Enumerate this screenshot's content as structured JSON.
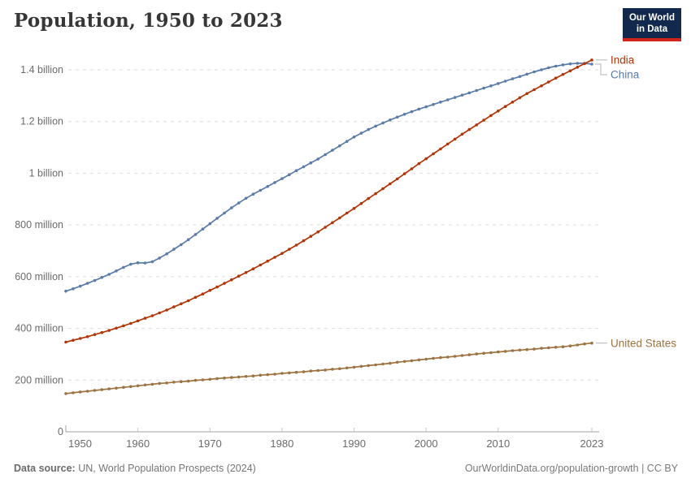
{
  "header": {
    "title": "Population, 1950 to 2023"
  },
  "logo": {
    "line1": "Our World",
    "line2": "in Data",
    "bg_color": "#12294d",
    "accent_color": "#d0241c"
  },
  "footer": {
    "source_label": "Data source:",
    "source_text": " UN, World Population Prospects (2024)",
    "credit_text": "OurWorldinData.org/population-growth | CC BY"
  },
  "chart_data": {
    "type": "line",
    "title": "Population, 1950 to 2023",
    "unit": "people (millions)",
    "grid": true,
    "legend_position": "end-of-line-labels-right",
    "xlim": [
      1950,
      2023
    ],
    "ylim": [
      0,
      1400
    ],
    "x_ticks": [
      {
        "value": 1950,
        "label": "1950"
      },
      {
        "value": 1960,
        "label": "1960"
      },
      {
        "value": 1970,
        "label": "1970"
      },
      {
        "value": 1980,
        "label": "1980"
      },
      {
        "value": 1990,
        "label": "1990"
      },
      {
        "value": 2000,
        "label": "2000"
      },
      {
        "value": 2010,
        "label": "2010"
      },
      {
        "value": 2023,
        "label": "2023"
      }
    ],
    "y_ticks": [
      {
        "value": 0,
        "label": "0"
      },
      {
        "value": 200,
        "label": "200 million"
      },
      {
        "value": 400,
        "label": "400 million"
      },
      {
        "value": 600,
        "label": "600 million"
      },
      {
        "value": 800,
        "label": "800 million"
      },
      {
        "value": 1000,
        "label": "1 billion"
      },
      {
        "value": 1200,
        "label": "1.2 billion"
      },
      {
        "value": 1400,
        "label": "1.4 billion"
      }
    ],
    "x": [
      1950,
      1951,
      1952,
      1953,
      1954,
      1955,
      1956,
      1957,
      1958,
      1959,
      1960,
      1961,
      1962,
      1963,
      1964,
      1965,
      1966,
      1967,
      1968,
      1969,
      1970,
      1971,
      1972,
      1973,
      1974,
      1975,
      1976,
      1977,
      1978,
      1979,
      1980,
      1981,
      1982,
      1983,
      1984,
      1985,
      1986,
      1987,
      1988,
      1989,
      1990,
      1991,
      1992,
      1993,
      1994,
      1995,
      1996,
      1997,
      1998,
      1999,
      2000,
      2001,
      2002,
      2003,
      2004,
      2005,
      2006,
      2007,
      2008,
      2009,
      2010,
      2011,
      2012,
      2013,
      2014,
      2015,
      2016,
      2017,
      2018,
      2019,
      2020,
      2021,
      2022,
      2023
    ],
    "series": [
      {
        "name": "India",
        "color": "#b13507",
        "values": [
          347,
          354,
          361,
          368,
          376,
          384,
          392,
          401,
          410,
          419,
          429,
          439,
          449,
          460,
          471,
          483,
          495,
          507,
          520,
          533,
          547,
          560,
          574,
          588,
          602,
          616,
          630,
          645,
          660,
          675,
          690,
          706,
          722,
          739,
          756,
          773,
          791,
          809,
          827,
          846,
          864,
          883,
          902,
          921,
          940,
          959,
          978,
          998,
          1017,
          1037,
          1056,
          1075,
          1094,
          1113,
          1132,
          1151,
          1169,
          1187,
          1205,
          1223,
          1241,
          1258,
          1275,
          1292,
          1308,
          1323,
          1338,
          1353,
          1368,
          1382,
          1396,
          1410,
          1424,
          1438
        ]
      },
      {
        "name": "China",
        "color": "#5b7ba8",
        "values": [
          544,
          553,
          563,
          574,
          585,
          597,
          609,
          622,
          636,
          648,
          654,
          653,
          658,
          672,
          688,
          706,
          724,
          743,
          763,
          784,
          805,
          826,
          846,
          866,
          885,
          903,
          919,
          934,
          949,
          964,
          979,
          994,
          1010,
          1025,
          1040,
          1055,
          1072,
          1089,
          1106,
          1123,
          1140,
          1155,
          1169,
          1182,
          1194,
          1206,
          1217,
          1228,
          1238,
          1248,
          1257,
          1266,
          1275,
          1284,
          1293,
          1302,
          1311,
          1320,
          1329,
          1338,
          1347,
          1356,
          1365,
          1374,
          1383,
          1392,
          1400,
          1408,
          1414,
          1419,
          1423,
          1425,
          1425,
          1422
        ]
      },
      {
        "name": "United States",
        "color": "#9d7341",
        "values": [
          148,
          151,
          154,
          157,
          160,
          163,
          166,
          169,
          172,
          175,
          178,
          181,
          184,
          187,
          189,
          192,
          194,
          196,
          199,
          201,
          203,
          206,
          208,
          210,
          212,
          214,
          216,
          219,
          221,
          223,
          226,
          228,
          230,
          232,
          235,
          237,
          239,
          242,
          244,
          247,
          250,
          253,
          256,
          259,
          262,
          265,
          269,
          272,
          275,
          278,
          281,
          284,
          287,
          289,
          292,
          295,
          298,
          301,
          304,
          306,
          309,
          311,
          314,
          316,
          318,
          320,
          323,
          325,
          327,
          329,
          332,
          336,
          340,
          343
        ]
      }
    ]
  }
}
